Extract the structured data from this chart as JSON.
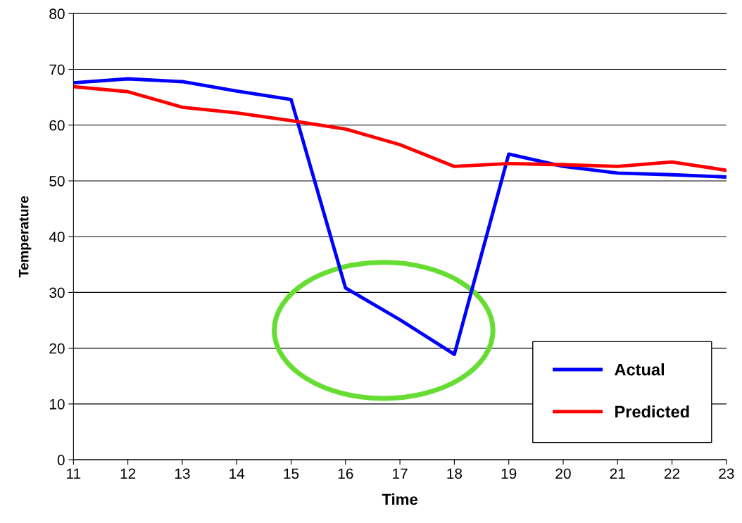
{
  "chart_data": {
    "type": "line",
    "xlabel": "Time",
    "ylabel": "Temperature",
    "x": [
      11,
      12,
      13,
      14,
      15,
      16,
      17,
      18,
      19,
      20,
      21,
      22,
      23
    ],
    "series": [
      {
        "name": "Actual",
        "color": "#0000ff",
        "values": [
          67.6,
          68.3,
          67.8,
          66.1,
          64.6,
          30.8,
          25.1,
          18.9,
          54.8,
          52.6,
          51.4,
          51.1,
          50.7
        ]
      },
      {
        "name": "Predicted",
        "color": "#ff0000",
        "values": [
          66.9,
          66.0,
          63.2,
          62.2,
          60.8,
          59.3,
          56.5,
          52.6,
          53.1,
          52.9,
          52.6,
          53.4,
          51.9
        ]
      }
    ],
    "xlim": [
      11,
      23
    ],
    "xticks": [
      11,
      12,
      13,
      14,
      15,
      16,
      17,
      18,
      19,
      20,
      21,
      22,
      23
    ],
    "ylim": [
      0,
      80
    ],
    "yticks": [
      0,
      10,
      20,
      30,
      40,
      50,
      60,
      70,
      80
    ],
    "grid": "y",
    "legend": "bottom right",
    "marker": "none",
    "line_style": "solid"
  }
}
